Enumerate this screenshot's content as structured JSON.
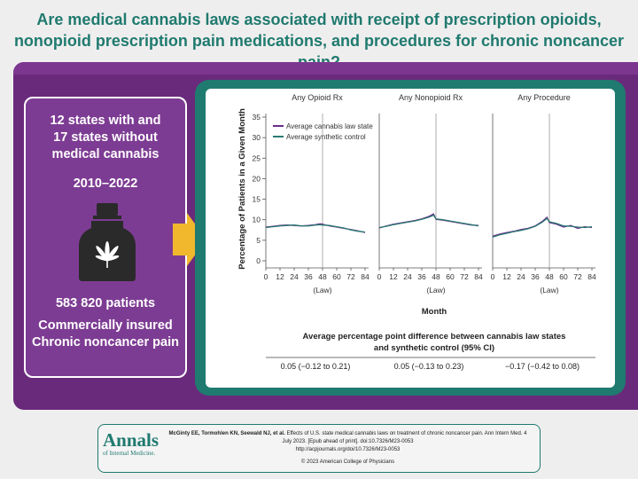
{
  "title": "Are medical cannabis laws associated with receipt of prescription opioids, nonopioid prescription pain medications, and procedures for chronic noncancer pain?",
  "left_panel": {
    "states_line1": "12 states with and",
    "states_line2": "17 states without",
    "states_line3": "medical cannabis",
    "years": "2010–2022",
    "patients": "583 820 patients",
    "population_line1": "Commercially insured",
    "population_line2": "Chronic noncancer pain"
  },
  "colors": {
    "title_teal": "#1f7a6f",
    "band_purple": "#6a2a7c",
    "panel_purple": "#7d3c93",
    "arrow_gold": "#f1b82d",
    "cannabis_line": "#6b2d8a",
    "synthetic_line": "#2a7a72"
  },
  "icons": [
    "cannabis-bottle-icon"
  ],
  "chart_data": {
    "type": "line",
    "ylabel": "Percentage of Patients in a Given Month",
    "xlabel": "Month",
    "ylim": [
      0,
      35
    ],
    "yticks": [
      "0",
      "5",
      "10",
      "15",
      "20",
      "25",
      "30",
      "35"
    ],
    "xlim": [
      0,
      87
    ],
    "xticks": [
      "0",
      "12",
      "24",
      "36",
      "48",
      "60",
      "72",
      "84"
    ],
    "law_month": 48,
    "law_label": "(Law)",
    "legend": [
      "Average cannabis law state",
      "Average synthetic control"
    ],
    "legend_position": "top-left",
    "panels": [
      {
        "title": "Any Opioid Rx",
        "x": [
          0,
          6,
          12,
          18,
          24,
          30,
          36,
          42,
          46,
          48,
          54,
          60,
          66,
          72,
          78,
          84
        ],
        "series": [
          {
            "name": "Average cannabis law state",
            "values": [
              8.2,
              8.4,
              8.6,
              8.7,
              8.6,
              8.5,
              8.6,
              8.8,
              9.0,
              8.9,
              8.5,
              8.2,
              7.9,
              7.6,
              7.3,
              6.9
            ]
          },
          {
            "name": "Average synthetic control",
            "values": [
              8.1,
              8.3,
              8.5,
              8.6,
              8.7,
              8.5,
              8.5,
              8.7,
              8.8,
              8.7,
              8.6,
              8.3,
              8.0,
              7.5,
              7.2,
              7.0
            ]
          }
        ]
      },
      {
        "title": "Any Nonopioid Rx",
        "x": [
          0,
          6,
          12,
          18,
          24,
          30,
          36,
          42,
          46,
          48,
          54,
          60,
          66,
          72,
          78,
          84
        ],
        "series": [
          {
            "name": "Average cannabis law state",
            "values": [
              8.0,
              8.5,
              8.9,
              9.2,
              9.5,
              9.8,
              10.2,
              10.8,
              11.4,
              10.1,
              9.9,
              9.6,
              9.3,
              9.0,
              8.7,
              8.6
            ]
          },
          {
            "name": "Average synthetic control",
            "values": [
              8.1,
              8.4,
              8.8,
              9.1,
              9.4,
              9.7,
              10.1,
              10.6,
              11.1,
              10.2,
              10.0,
              9.7,
              9.4,
              9.1,
              8.8,
              8.5
            ]
          }
        ]
      },
      {
        "title": "Any Procedure",
        "x": [
          0,
          6,
          12,
          18,
          24,
          30,
          36,
          42,
          46,
          48,
          54,
          60,
          66,
          72,
          78,
          84
        ],
        "series": [
          {
            "name": "Average cannabis law state",
            "values": [
              6.0,
              6.5,
              6.9,
              7.2,
              7.6,
              7.9,
              8.5,
              9.6,
              10.6,
              9.3,
              8.9,
              8.2,
              8.6,
              7.9,
              8.3,
              8.1
            ]
          },
          {
            "name": "Average synthetic control",
            "values": [
              5.8,
              6.3,
              6.7,
              7.1,
              7.4,
              7.8,
              8.4,
              9.4,
              10.3,
              9.5,
              9.1,
              8.5,
              8.4,
              8.2,
              8.1,
              8.3
            ]
          }
        ]
      }
    ],
    "difference_title_line1": "Average percentage point difference between cannabis law states",
    "difference_title_line2": "and synthetic control (95% CI)",
    "differences": [
      "0.05 (−0.12 to 0.21)",
      "0.05 (−0.13 to 0.23)",
      "−0.17 (−0.42 to 0.08)"
    ]
  },
  "footer": {
    "journal_name": "Annals",
    "journal_subtitle": "of Internal Medicine.",
    "citation_authors": "McGinty EE, Tormohlen KN, Seewald NJ, et al.",
    "citation_line1_rest": "Effects of U.S. state medical cannabis laws on treatment of chronic noncancer pain. Ann Intern Med. 4",
    "citation_line2": "July 2023. [Epub ahead of print]. doi:10.7326/M23-0053",
    "citation_line3": "http://acpjournals.org/doi/10.7326/M23-0053",
    "copyright": "© 2023 American College of Physicians"
  }
}
